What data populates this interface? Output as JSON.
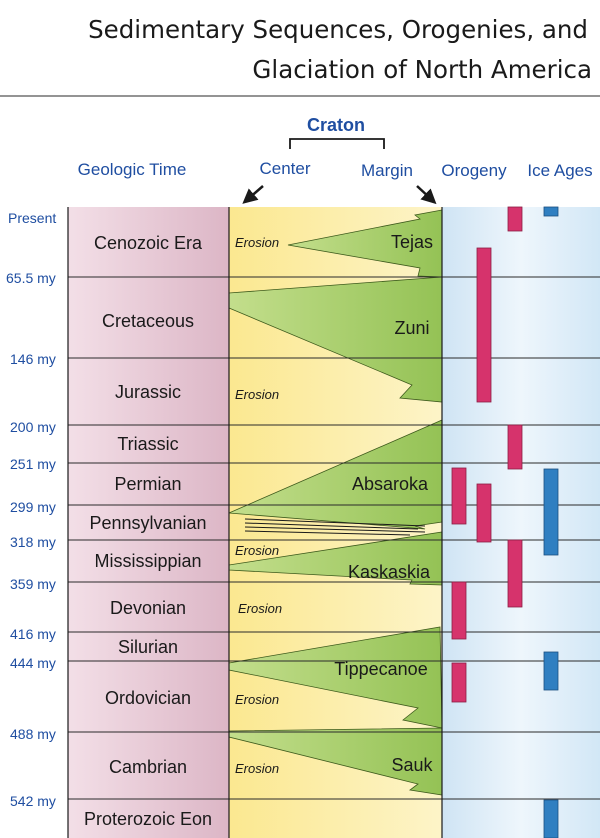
{
  "title": {
    "line1": "Sedimentary Sequences, Orogenies, and",
    "line2": "Glaciation of North America"
  },
  "headers": {
    "geologic_time": "Geologic Time",
    "craton": "Craton",
    "center": "Center",
    "margin": "Margin",
    "orogeny": "Orogeny",
    "ice_ages": "Ice Ages"
  },
  "age_labels": [
    "Present",
    "65.5 my",
    "146 my",
    "200 my",
    "251 my",
    "299 my",
    "318 my",
    "359 my",
    "416 my",
    "444 my",
    "488 my",
    "542 my"
  ],
  "periods": [
    "Cenozoic Era",
    "Cretaceous",
    "Jurassic",
    "Triassic",
    "Permian",
    "Pennsylvanian",
    "Mississippian",
    "Devonian",
    "Silurian",
    "Ordovician",
    "Cambrian",
    "Proterozoic Eon"
  ],
  "sequences": [
    "Tejas",
    "Zuni",
    "Absaroka",
    "Kaskaskia",
    "Tippecanoe",
    "Sauk"
  ],
  "erosion_label": "Erosion",
  "colors": {
    "time_column": "#e8c8d4",
    "craton_yellow": "#fbeea0",
    "craton_green": "#a9cf6a",
    "right_column": "#d5e8f5",
    "orogeny_bar": "#d6336c",
    "ice_bar": "#2f7fc1",
    "header_blue": "#1f4ea1"
  }
}
